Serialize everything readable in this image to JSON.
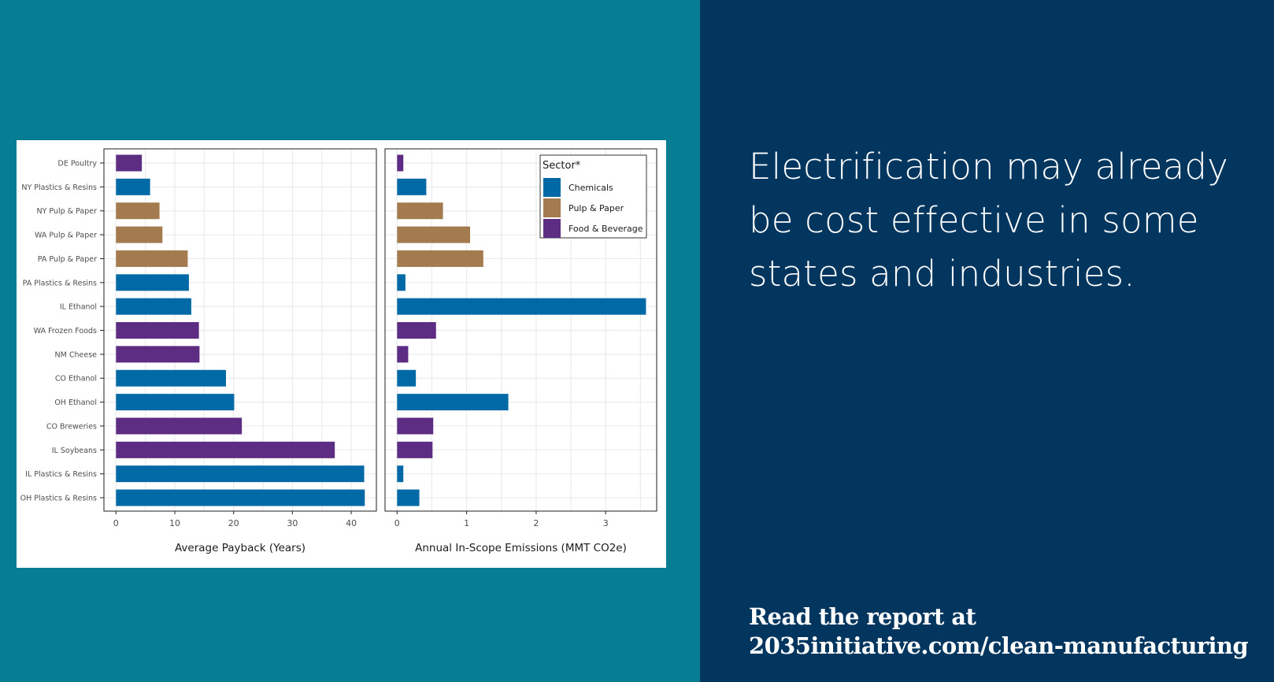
{
  "headline": {
    "lines": [
      "Electrification may already",
      "be cost effective in some",
      "states and industries."
    ]
  },
  "cta": {
    "lines": [
      "Read the report at",
      "2035initiative.com/clean-manufacturing"
    ]
  },
  "colors": {
    "background_left": "#077d94",
    "background_right": "#03365f",
    "Chemicals": "#0069a6",
    "Pulp & Paper": "#a47b4e",
    "Food & Beverage": "#5c2d82"
  },
  "chart_data": [
    {
      "type": "bar",
      "orientation": "horizontal",
      "title": "",
      "xlabel": "Average Payback (Years)",
      "ylabel": "",
      "xlim": [
        0,
        43
      ],
      "xticks": [
        0,
        10,
        20,
        30,
        40
      ],
      "grid": true,
      "categories": [
        "DE Poultry",
        "NY Plastics & Resins",
        "NY Pulp & Paper",
        "WA Pulp & Paper",
        "PA Pulp & Paper",
        "PA Plastics & Resins",
        "IL Ethanol",
        "WA Frozen Foods",
        "NM Cheese",
        "CO Ethanol",
        "OH Ethanol",
        "CO Breweries",
        "IL Soybeans",
        "IL Plastics & Resins",
        "OH Plastics & Resins"
      ],
      "sectors": [
        "Food & Beverage",
        "Chemicals",
        "Pulp & Paper",
        "Pulp & Paper",
        "Pulp & Paper",
        "Chemicals",
        "Chemicals",
        "Food & Beverage",
        "Food & Beverage",
        "Chemicals",
        "Chemicals",
        "Food & Beverage",
        "Food & Beverage",
        "Chemicals",
        "Chemicals"
      ],
      "values": [
        4.4,
        5.8,
        7.4,
        7.9,
        12.2,
        12.4,
        12.8,
        14.1,
        14.2,
        18.7,
        20.1,
        21.4,
        37.2,
        42.2,
        42.3
      ]
    },
    {
      "type": "bar",
      "orientation": "horizontal",
      "title": "",
      "xlabel": "Annual In-Scope Emissions (MMT CO2e)",
      "ylabel": "",
      "xlim": [
        0,
        3.75
      ],
      "xticks": [
        0,
        1,
        2,
        3
      ],
      "grid": true,
      "categories": [
        "DE Poultry",
        "NY Plastics & Resins",
        "NY Pulp & Paper",
        "WA Pulp & Paper",
        "PA Pulp & Paper",
        "PA Plastics & Resins",
        "IL Ethanol",
        "WA Frozen Foods",
        "NM Cheese",
        "CO Ethanol",
        "OH Ethanol",
        "CO Breweries",
        "IL Soybeans",
        "IL Plastics & Resins",
        "OH Plastics & Resins"
      ],
      "sectors": [
        "Food & Beverage",
        "Chemicals",
        "Pulp & Paper",
        "Pulp & Paper",
        "Pulp & Paper",
        "Chemicals",
        "Chemicals",
        "Food & Beverage",
        "Food & Beverage",
        "Chemicals",
        "Chemicals",
        "Food & Beverage",
        "Food & Beverage",
        "Chemicals",
        "Chemicals"
      ],
      "values": [
        0.09,
        0.42,
        0.66,
        1.05,
        1.24,
        0.12,
        3.58,
        0.56,
        0.16,
        0.27,
        1.6,
        0.52,
        0.51,
        0.09,
        0.32
      ],
      "legend": {
        "title": "Sector*",
        "placement": "top-right",
        "entries": [
          "Chemicals",
          "Pulp & Paper",
          "Food & Beverage"
        ]
      }
    }
  ]
}
